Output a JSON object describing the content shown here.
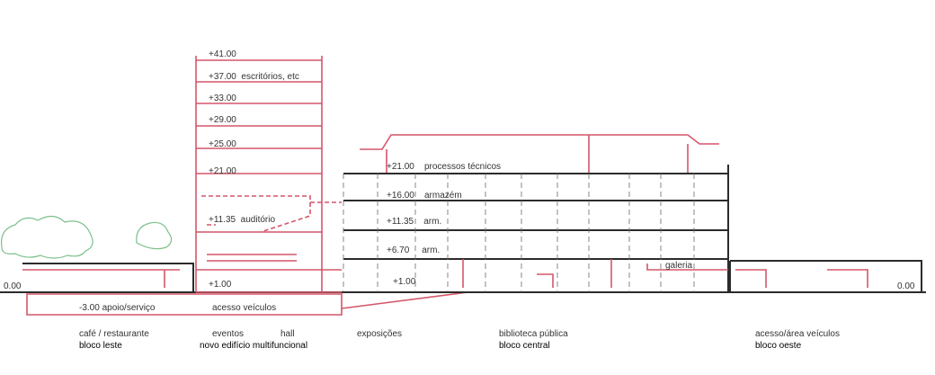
{
  "tower_levels": [
    "+41.00",
    "+37.00  escritórios, etc",
    "+33.00",
    "+29.00",
    "+25.00",
    "+21.00",
    "+11.35  auditório",
    "+1.00"
  ],
  "central_levels": [
    "+21.00    processos técnicos",
    "+16.00    armazém",
    "+11.35    arm.",
    "+6.70     arm.",
    "+1.00"
  ],
  "annotations": {
    "galeria": "galeria",
    "ground_left": "0.00",
    "ground_right": "0.00",
    "basement": "-3.00 apoio/serviço",
    "vehicle_access": "acesso veículos"
  },
  "zones": [
    {
      "label": "café / restaurante",
      "block": "bloco leste"
    },
    {
      "label": "eventos",
      "block": "novo edifício multifuncional"
    },
    {
      "label": "hall"
    },
    {
      "label": "exposições"
    },
    {
      "label": "biblioteca pública",
      "block": "bloco central"
    },
    {
      "label": "acesso/área veículos",
      "block": "bloco oeste"
    }
  ]
}
